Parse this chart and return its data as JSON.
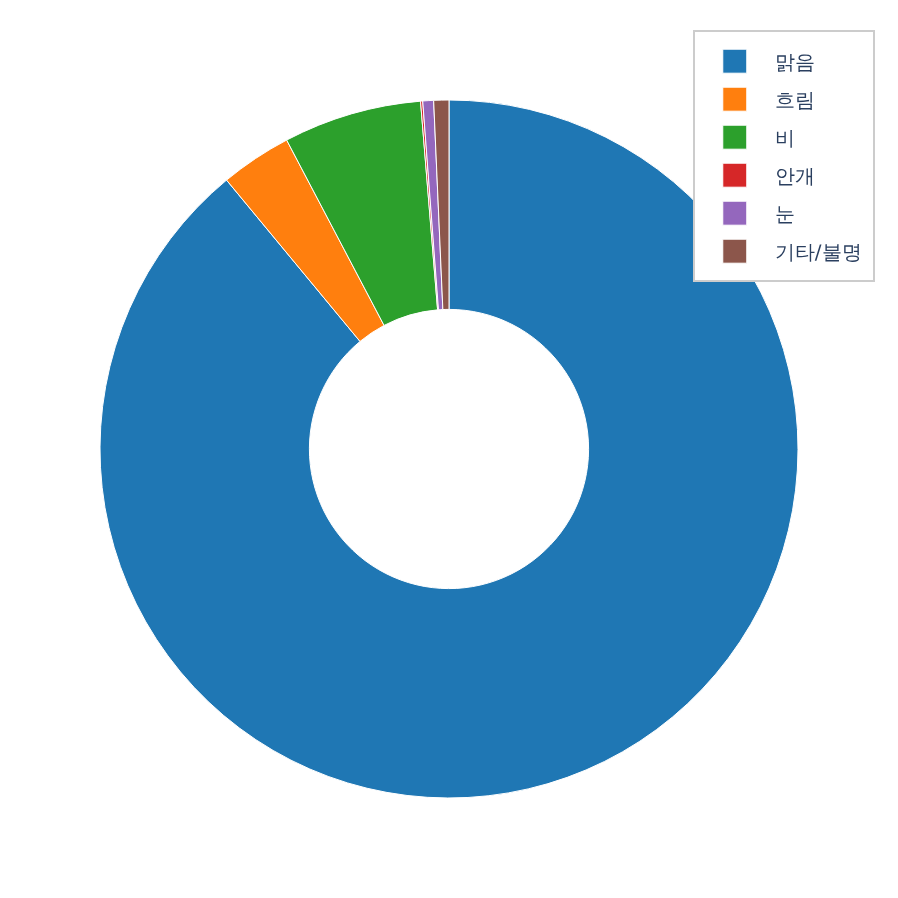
{
  "chart_data": {
    "type": "donut",
    "categories": [
      "맑음",
      "흐림",
      "비",
      "안개",
      "눈",
      "기타/불명"
    ],
    "values": [
      89.0,
      3.3,
      6.4,
      0.1,
      0.5,
      0.7
    ],
    "colors": [
      "#1f77b4",
      "#ff7f0e",
      "#2ca02c",
      "#d62728",
      "#9467bd",
      "#8c564b"
    ],
    "legend": "top right"
  }
}
